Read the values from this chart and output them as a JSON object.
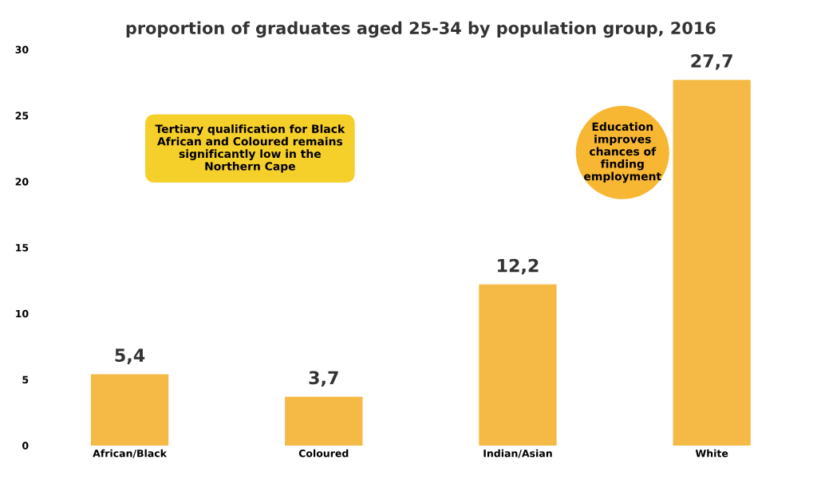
{
  "chart_data": {
    "type": "bar",
    "title": "proportion of graduates aged 25-34 by population group, 2016",
    "categories": [
      "African/Black",
      "Coloured",
      "Indian/Asian",
      "White"
    ],
    "values": [
      5.4,
      3.7,
      12.2,
      27.7
    ],
    "value_labels": [
      "5,4",
      "3,7",
      "12,2",
      "27,7"
    ],
    "color": "#f5b945",
    "ylim": [
      0,
      30
    ],
    "yticks": [
      0,
      5,
      10,
      15,
      20,
      25,
      30
    ],
    "grid": false,
    "annotations": [
      "Tertiary qualification for Black African and Coloured remains significantly low in the Northern Cape",
      "Education improves chances of finding employment"
    ]
  }
}
